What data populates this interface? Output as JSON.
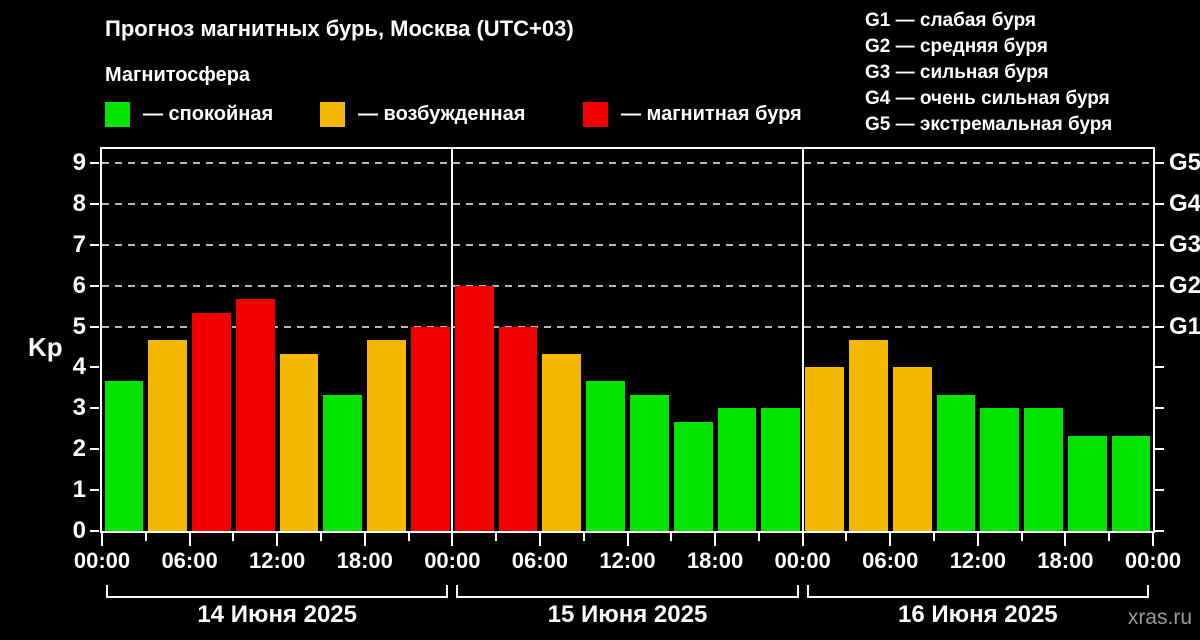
{
  "title": "Прогноз магнитных бурь, Москва (UTC+03)",
  "subtitle": "Магнитосфера",
  "legend": {
    "items": [
      {
        "key": "quiet",
        "label": "— спокойная",
        "color": "#00e400"
      },
      {
        "key": "excited",
        "label": "— возбужденная",
        "color": "#f5b800"
      },
      {
        "key": "storm",
        "label": "— магнитная буря",
        "color": "#f20000"
      }
    ]
  },
  "storm_scale_legend": [
    "G1 — слабая буря",
    "G2 — средняя буря",
    "G3 — сильная буря",
    "G4 — очень сильная буря",
    "G5 — экстремальная буря"
  ],
  "watermark": "xras.ru",
  "chart_data": {
    "type": "bar",
    "title": "Прогноз магнитных бурь, Москва (UTC+03)",
    "ylabel": "Kp",
    "ylim": [
      0,
      9.4
    ],
    "grid": "dashed horizontal lines at Kp 5-9 (G1-G5 levels), legend top-right",
    "y_ticks": [
      0,
      1,
      2,
      3,
      4,
      5,
      6,
      7,
      8,
      9
    ],
    "g_levels": [
      {
        "kp": 5,
        "label": "G1"
      },
      {
        "kp": 6,
        "label": "G2"
      },
      {
        "kp": 7,
        "label": "G3"
      },
      {
        "kp": 8,
        "label": "G4"
      },
      {
        "kp": 9,
        "label": "G5"
      }
    ],
    "x_tick_labels": [
      "00:00",
      "06:00",
      "12:00",
      "18:00",
      "00:00",
      "06:00",
      "12:00",
      "18:00",
      "00:00",
      "06:00",
      "12:00",
      "18:00",
      "00:00"
    ],
    "interval_hours": 3,
    "days": [
      {
        "date": "14 Июня 2025",
        "values": [
          3.67,
          4.67,
          5.33,
          5.67,
          4.33,
          3.33,
          4.67,
          5.0
        ]
      },
      {
        "date": "15 Июня 2025",
        "values": [
          6.0,
          5.0,
          4.33,
          3.67,
          3.33,
          2.67,
          3.0,
          3.0
        ]
      },
      {
        "date": "16 Июня 2025",
        "values": [
          4.0,
          4.67,
          4.0,
          3.33,
          3.0,
          3.0,
          2.33,
          2.33
        ]
      }
    ],
    "bar_color_rule": {
      "quiet_below_kp": 4,
      "excited_below_kp": 5,
      "storm_from_kp": 5
    },
    "colors": {
      "quiet": "#00e400",
      "excited": "#f5b800",
      "storm": "#f20000",
      "grid": "#b8b8b8",
      "axis": "#ffffff",
      "background": "#000000",
      "watermark": "#9a9a9a"
    }
  }
}
